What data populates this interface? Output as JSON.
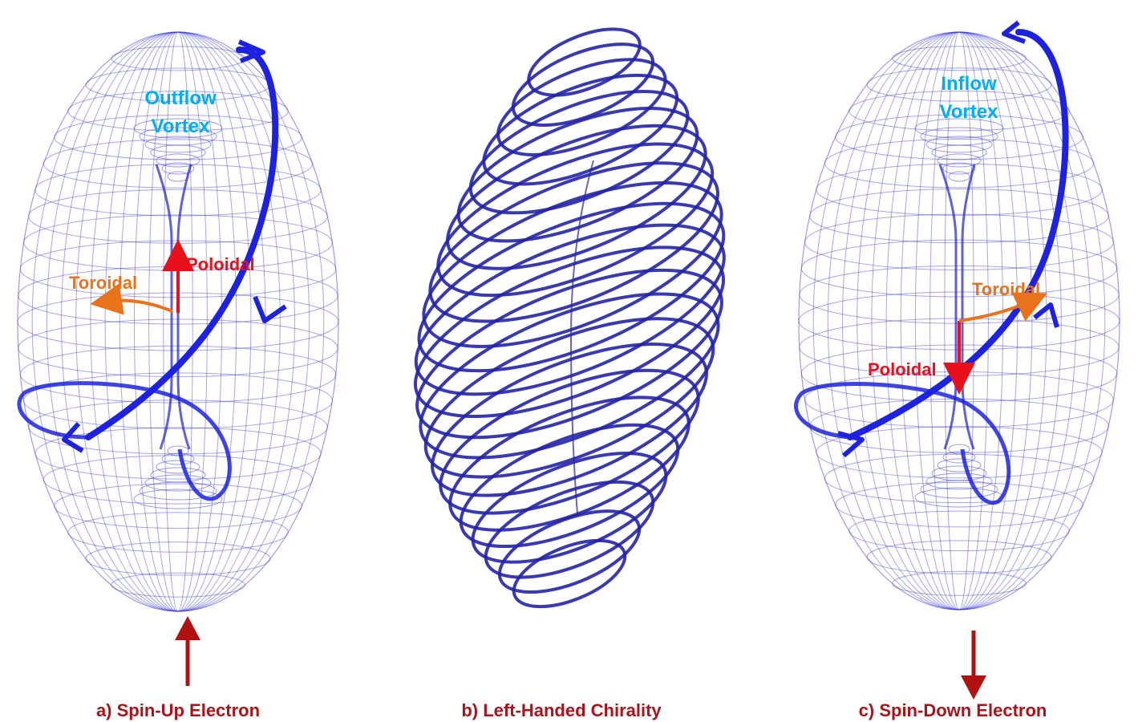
{
  "panels": {
    "a": {
      "caption": "a) Spin-Up Electron",
      "vortex_line1": "Outflow",
      "vortex_line2": "Vortex",
      "poloidal": "Poloidal",
      "toroidal": "Toroidal"
    },
    "b": {
      "caption": "b) Left-Handed Chirality"
    },
    "c": {
      "caption": "c) Spin-Down Electron",
      "vortex_line1": "Inflow",
      "vortex_line2": "Vortex",
      "poloidal": "Poloidal",
      "toroidal": "Toroidal"
    }
  },
  "colors": {
    "mesh": "#3a3ad8",
    "stream": "#1c22e0",
    "helix": "#2424a8",
    "poloidal": "#e8101a",
    "toroidal": "#e8731a",
    "spin": "#b01010",
    "vortex_text": "#00aef0",
    "caption": "#a8141a"
  }
}
